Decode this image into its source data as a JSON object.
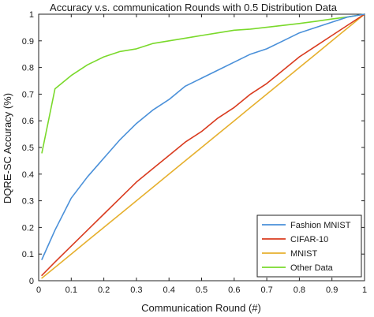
{
  "chart_data": {
    "type": "line",
    "title": "Accuracy v.s. communication Rounds with 0.5 Distribution Data",
    "xlabel": "Communication Round (#)",
    "ylabel": "DQRE-SC Accuracy (%)",
    "xlim": [
      0,
      1
    ],
    "ylim": [
      0,
      1
    ],
    "xticks": [
      "0",
      "0.1",
      "0.2",
      "0.3",
      "0.4",
      "0.5",
      "0.6",
      "0.7",
      "0.8",
      "0.9",
      "1"
    ],
    "yticks": [
      "0",
      "0.1",
      "0.2",
      "0.3",
      "0.4",
      "0.5",
      "0.6",
      "0.7",
      "0.8",
      "0.9",
      "1"
    ],
    "grid": false,
    "legend_position": "bottom-right",
    "x": [
      0.01,
      0.05,
      0.1,
      0.15,
      0.2,
      0.25,
      0.3,
      0.35,
      0.4,
      0.45,
      0.5,
      0.55,
      0.6,
      0.65,
      0.7,
      0.75,
      0.8,
      0.85,
      0.9,
      0.95,
      1.0
    ],
    "series": [
      {
        "name": "Fashion MNIST",
        "color": "#4a90d9",
        "values": [
          0.08,
          0.19,
          0.31,
          0.39,
          0.46,
          0.53,
          0.59,
          0.64,
          0.68,
          0.73,
          0.76,
          0.79,
          0.82,
          0.85,
          0.87,
          0.9,
          0.93,
          0.95,
          0.97,
          0.99,
          1.0
        ]
      },
      {
        "name": "CIFAR-10",
        "color": "#d93b1f",
        "values": [
          0.02,
          0.07,
          0.13,
          0.19,
          0.25,
          0.31,
          0.37,
          0.42,
          0.47,
          0.52,
          0.56,
          0.61,
          0.65,
          0.7,
          0.74,
          0.79,
          0.84,
          0.88,
          0.92,
          0.96,
          1.0
        ]
      },
      {
        "name": "MNIST",
        "color": "#e6b02e",
        "values": [
          0.01,
          0.05,
          0.1,
          0.15,
          0.2,
          0.25,
          0.3,
          0.35,
          0.4,
          0.45,
          0.5,
          0.55,
          0.6,
          0.65,
          0.7,
          0.75,
          0.8,
          0.85,
          0.9,
          0.95,
          1.0
        ]
      },
      {
        "name": "Other Data",
        "color": "#7ad92b",
        "values": [
          0.48,
          0.72,
          0.77,
          0.81,
          0.84,
          0.86,
          0.87,
          0.89,
          0.9,
          0.91,
          0.92,
          0.93,
          0.94,
          0.944,
          0.951,
          0.958,
          0.965,
          0.973,
          0.982,
          0.99,
          1.0
        ]
      }
    ]
  }
}
